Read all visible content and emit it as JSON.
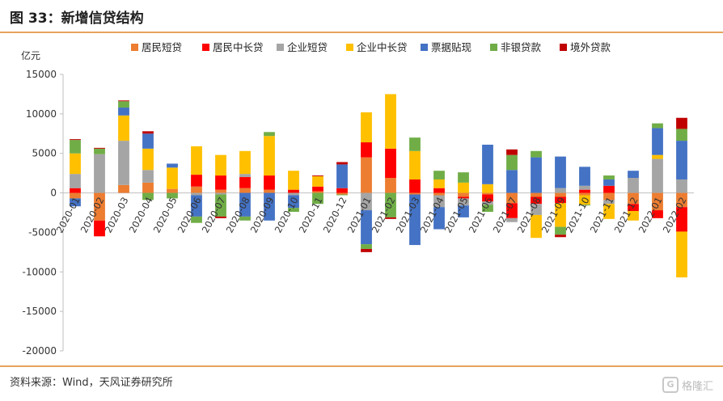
{
  "header": {
    "title": "图 33：新增信贷结构"
  },
  "footer": {
    "source": "资料来源：Wind，天风证券研究所",
    "watermark": "格隆汇"
  },
  "colors": {
    "居民短贷": "#ed7d31",
    "居民中长贷": "#ff0000",
    "企业短贷": "#a5a5a5",
    "企业中长贷": "#ffc000",
    "票据贴现": "#4472c4",
    "非银贷款": "#70ad47",
    "境外贷款": "#c00000",
    "axis": "#bfbfbf",
    "rule": "#e7a35b"
  },
  "chart_data": {
    "type": "bar",
    "stacked": true,
    "unit": "亿元",
    "ylim": [
      -20000,
      15000
    ],
    "yticks": [
      15000,
      10000,
      5000,
      0,
      -5000,
      -10000,
      -15000,
      -20000
    ],
    "legend_position": "top",
    "categories": [
      "2020-01",
      "2020-02",
      "2020-03",
      "2020-04",
      "2020-05",
      "2020-06",
      "2020-07",
      "2020-08",
      "2020-09",
      "2020-10",
      "2020-11",
      "2020-12",
      "2021-01",
      "2021-02",
      "2021-03",
      "2021-04",
      "2021-05",
      "2021-06",
      "2021-07",
      "2021-08",
      "2021-09",
      "2021-10",
      "2021-11",
      "2021-12",
      "2022-01",
      "2022-02"
    ],
    "series": [
      {
        "name": "居民短贷",
        "values": [
          -700,
          -3500,
          1000,
          1300,
          500,
          800,
          400,
          600,
          400,
          0,
          200,
          -200,
          4500,
          1900,
          -200,
          -300,
          -500,
          -200,
          -1300,
          -500,
          -500,
          -300,
          -900,
          -1400,
          -2200,
          -1800
        ]
      },
      {
        "name": "居民中长贷",
        "values": [
          600,
          -2000,
          0,
          0,
          0,
          1500,
          1800,
          1400,
          1800,
          400,
          600,
          600,
          1900,
          3700,
          1700,
          600,
          -200,
          -900,
          -1900,
          -900,
          -800,
          400,
          900,
          -900,
          -1000,
          -3100
        ]
      },
      {
        "name": "企业短贷",
        "values": [
          1800,
          4900,
          5600,
          1600,
          0,
          -300,
          -200,
          400,
          0,
          -300,
          0,
          0,
          -2200,
          0,
          0,
          -1500,
          -900,
          -400,
          -500,
          -1400,
          600,
          500,
          -500,
          1900,
          4300,
          1700
        ]
      },
      {
        "name": "企业中长贷",
        "values": [
          2600,
          0,
          3200,
          2700,
          2700,
          3600,
          2600,
          2900,
          5000,
          2400,
          1300,
          0,
          3800,
          6900,
          3600,
          1100,
          1300,
          1100,
          0,
          -2900,
          -3000,
          -1200,
          -1900,
          -1200,
          500,
          -5800
        ]
      },
      {
        "name": "票据贴现",
        "values": [
          -1000,
          0,
          1000,
          1900,
          500,
          -2700,
          0,
          -3000,
          -3500,
          -1600,
          0,
          3000,
          -4300,
          0,
          -6400,
          -2800,
          -1500,
          5000,
          2900,
          4500,
          4000,
          2400,
          800,
          900,
          3400,
          4900
        ]
      },
      {
        "name": "非银贷款",
        "values": [
          1700,
          700,
          800,
          -900,
          -700,
          -800,
          -2800,
          -500,
          500,
          -500,
          -1400,
          -100,
          -600,
          -3100,
          1700,
          1100,
          1300,
          -900,
          1900,
          800,
          -1000,
          -100,
          500,
          0,
          600,
          1500
        ]
      },
      {
        "name": "境外贷款",
        "values": [
          100,
          100,
          100,
          300,
          0,
          0,
          -200,
          0,
          0,
          0,
          100,
          300,
          -400,
          -200,
          0,
          0,
          0,
          0,
          700,
          0,
          -300,
          0,
          0,
          0,
          0,
          1400
        ]
      }
    ]
  }
}
